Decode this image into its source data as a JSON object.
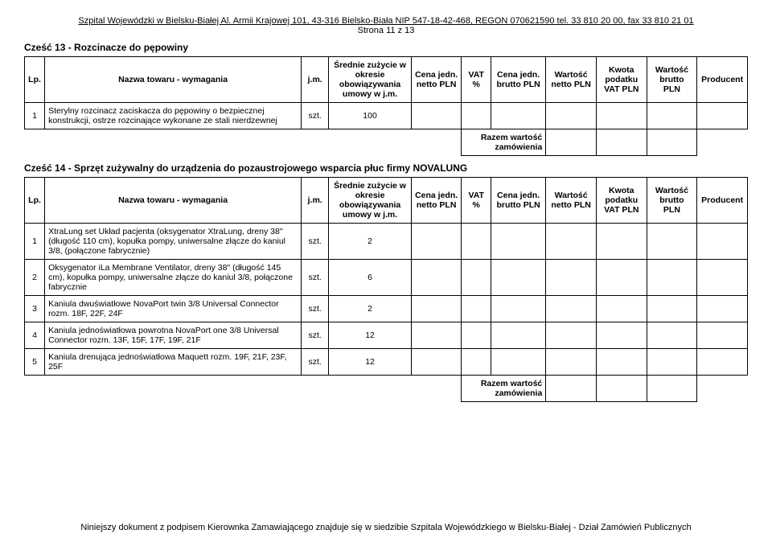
{
  "header": {
    "line": "Szpital Wojewódzki w Bielsku-Białej Al. Armii Krajowej 101, 43-316 Bielsko-Biała NIP 547-18-42-468, REGON 070621590 tel. 33 810 20 00, fax 33 810 21 01",
    "page": "Strona 11 z 13"
  },
  "columns": {
    "lp": "Lp.",
    "name": "Nazwa towaru - wymagania",
    "jm": "j.m.",
    "zuzycie": "Średnie zużycie w okresie obowiązywania umowy w j.m.",
    "cena_netto": "Cena jedn. netto PLN",
    "vat": "VAT %",
    "cena_brutto": "Cena jedn. brutto PLN",
    "wartosc_netto": "Wartość netto PLN",
    "kwota_vat": "Kwota podatku VAT PLN",
    "wartosc_brutto": "Wartość brutto PLN",
    "producent": "Producent"
  },
  "sections": [
    {
      "title": "Cześć 13 - Rozcinacze do pępowiny",
      "rows": [
        {
          "lp": "1",
          "name": "Sterylny rozcinacz zaciskacza do pępowiny o bezpiecznej konstrukcji, ostrze rozcinające wykonane ze stali nierdzewnej",
          "jm": "szt.",
          "qty": "100"
        }
      ],
      "razem": "Razem wartość zamówienia"
    },
    {
      "title": "Cześć 14 - Sprzęt zużywalny do urządzenia do pozaustrojowego wsparcia płuc firmy NOVALUNG",
      "rows": [
        {
          "lp": "1",
          "name": "XtraLung set Układ pacjenta (oksygenator XtraLung, dreny 38\" (długość 110 cm), kopułka pompy, uniwersalne złącze do kaniul 3/8, (połączone fabrycznie)",
          "jm": "szt.",
          "qty": "2"
        },
        {
          "lp": "2",
          "name": "Oksygenator iLa Membrane Ventilator, dreny 38\" (długość 145 cm), kopułka pompy, uniwersalne złącze do kaniul 3/8, połączone fabrycznie",
          "jm": "szt.",
          "qty": "6"
        },
        {
          "lp": "3",
          "name": "Kaniula dwuświatłowe NovaPort twin 3/8 Universal Connector rozm. 18F, 22F, 24F",
          "jm": "szt.",
          "qty": "2"
        },
        {
          "lp": "4",
          "name": "Kaniula jednoświatłowa powrotna NovaPort one 3/8 Universal Connector rozm. 13F, 15F, 17F, 19F, 21F",
          "jm": "szt.",
          "qty": "12"
        },
        {
          "lp": "5",
          "name": "Kaniula drenująca jednoświatłowa Maquett rozm. 19F, 21F, 23F, 25F",
          "jm": "szt.",
          "qty": "12"
        }
      ],
      "razem": "Razem wartość zamówienia"
    }
  ],
  "footer": "Niniejszy dokument z podpisem Kierownka Zamawiającego znajduje się w siedzibie Szpitala Wojewódzkiego w Bielsku-Białej - Dział Zamówień Publicznych"
}
